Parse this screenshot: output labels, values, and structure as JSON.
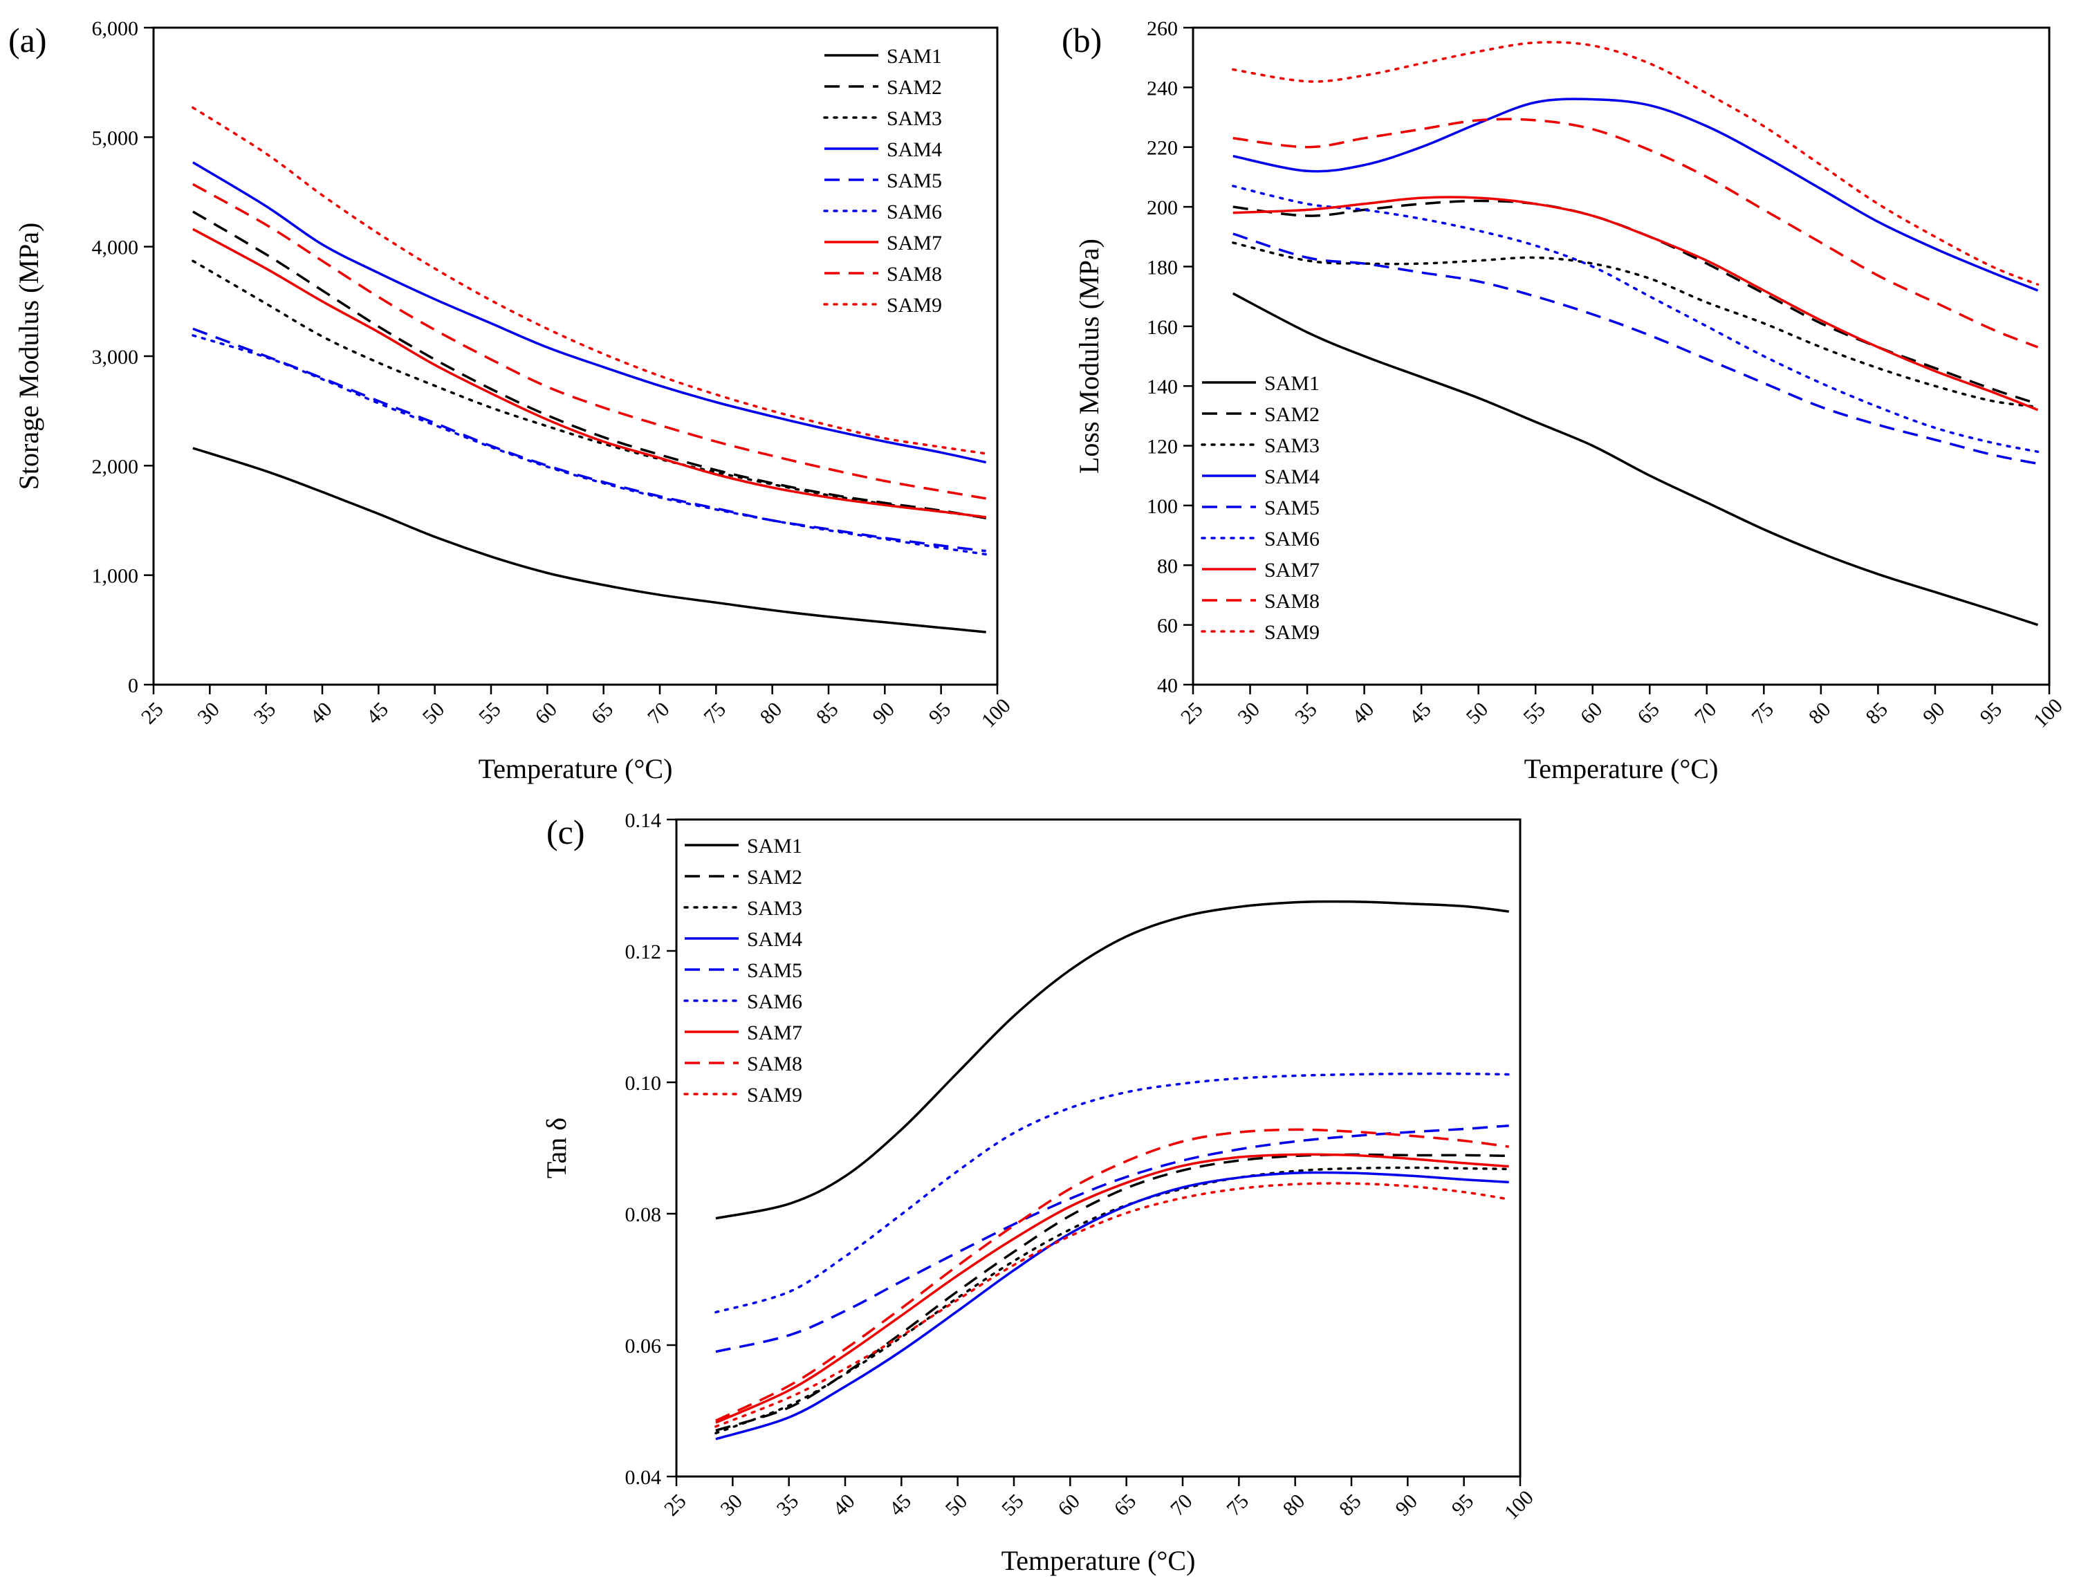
{
  "chart_data": [
    {
      "panel_label": "(a)",
      "type": "line",
      "xlabel": "Temperature (°C)",
      "ylabel": "Storage Modulus (MPa)",
      "xlim": [
        25,
        100
      ],
      "ylim": [
        0,
        6000
      ],
      "xticks": [
        25,
        30,
        35,
        40,
        45,
        50,
        55,
        60,
        65,
        70,
        75,
        80,
        85,
        90,
        95,
        100
      ],
      "yticks": [
        0,
        1000,
        2000,
        3000,
        4000,
        5000,
        6000
      ],
      "ytick_labels": [
        "0",
        "1,000",
        "2,000",
        "3,000",
        "4,000",
        "5,000",
        "6,000"
      ],
      "legend_position": "top-right",
      "x": [
        28.5,
        35,
        40,
        45,
        50,
        55,
        60,
        65,
        70,
        75,
        80,
        85,
        90,
        95,
        99
      ],
      "series": [
        {
          "name": "SAM1",
          "color": "#000000",
          "dash": "solid",
          "values": [
            2160,
            1950,
            1760,
            1560,
            1350,
            1170,
            1020,
            910,
            820,
            750,
            680,
            620,
            570,
            520,
            480
          ]
        },
        {
          "name": "SAM2",
          "color": "#000000",
          "dash": "dashed",
          "values": [
            4320,
            3930,
            3600,
            3270,
            2970,
            2700,
            2460,
            2260,
            2100,
            1960,
            1840,
            1740,
            1660,
            1590,
            1520
          ]
        },
        {
          "name": "SAM3",
          "color": "#000000",
          "dash": "dotted",
          "values": [
            3870,
            3480,
            3180,
            2940,
            2730,
            2530,
            2360,
            2200,
            2060,
            1940,
            1830,
            1730,
            1650,
            1580,
            1530
          ]
        },
        {
          "name": "SAM4",
          "color": "#0000ee",
          "dash": "solid",
          "values": [
            4770,
            4370,
            4020,
            3760,
            3520,
            3300,
            3080,
            2900,
            2730,
            2580,
            2450,
            2330,
            2220,
            2120,
            2030
          ]
        },
        {
          "name": "SAM5",
          "color": "#0000ee",
          "dash": "dashed",
          "values": [
            3250,
            3000,
            2800,
            2590,
            2390,
            2180,
            2000,
            1850,
            1720,
            1610,
            1500,
            1420,
            1340,
            1270,
            1220
          ]
        },
        {
          "name": "SAM6",
          "color": "#0000ee",
          "dash": "dotted",
          "values": [
            3190,
            2990,
            2790,
            2570,
            2370,
            2170,
            1990,
            1840,
            1710,
            1600,
            1500,
            1410,
            1330,
            1250,
            1190
          ]
        },
        {
          "name": "SAM7",
          "color": "#ee0000",
          "dash": "solid",
          "values": [
            4160,
            3800,
            3500,
            3220,
            2920,
            2660,
            2420,
            2220,
            2070,
            1920,
            1800,
            1710,
            1640,
            1580,
            1530
          ]
        },
        {
          "name": "SAM8",
          "color": "#ee0000",
          "dash": "dashed",
          "values": [
            4570,
            4200,
            3870,
            3540,
            3240,
            2970,
            2720,
            2530,
            2370,
            2220,
            2090,
            1970,
            1860,
            1770,
            1700
          ]
        },
        {
          "name": "SAM9",
          "color": "#ee0000",
          "dash": "dotted",
          "values": [
            5270,
            4850,
            4470,
            4120,
            3800,
            3510,
            3250,
            3020,
            2820,
            2650,
            2500,
            2370,
            2250,
            2170,
            2110
          ]
        }
      ]
    },
    {
      "panel_label": "(b)",
      "type": "line",
      "xlabel": "Temperature (°C)",
      "ylabel": "Loss Modulus (MPa)",
      "xlim": [
        25,
        100
      ],
      "ylim": [
        40,
        260
      ],
      "xticks": [
        25,
        30,
        35,
        40,
        45,
        50,
        55,
        60,
        65,
        70,
        75,
        80,
        85,
        90,
        95,
        100
      ],
      "yticks": [
        40,
        60,
        80,
        100,
        120,
        140,
        160,
        180,
        200,
        220,
        240,
        260
      ],
      "ytick_labels": [
        "40",
        "60",
        "80",
        "100",
        "120",
        "140",
        "160",
        "180",
        "200",
        "220",
        "240",
        "260"
      ],
      "legend_position": "bottom-left",
      "x": [
        28.5,
        35,
        40,
        45,
        50,
        55,
        60,
        65,
        70,
        75,
        80,
        85,
        90,
        95,
        99
      ],
      "series": [
        {
          "name": "SAM1",
          "color": "#000000",
          "dash": "solid",
          "values": [
            171,
            158,
            150,
            143,
            136,
            128,
            120,
            110,
            101,
            92,
            84,
            77,
            71,
            65,
            60
          ]
        },
        {
          "name": "SAM2",
          "color": "#000000",
          "dash": "dashed",
          "values": [
            200,
            197,
            199,
            201,
            202,
            201,
            197,
            190,
            181,
            171,
            161,
            153,
            146,
            139,
            134
          ]
        },
        {
          "name": "SAM3",
          "color": "#000000",
          "dash": "dotted",
          "values": [
            188,
            182,
            181,
            181,
            182,
            183,
            181,
            176,
            168,
            161,
            153,
            146,
            140,
            135,
            133
          ]
        },
        {
          "name": "SAM4",
          "color": "#0000ee",
          "dash": "solid",
          "values": [
            217,
            212,
            214,
            220,
            228,
            235,
            236,
            234,
            227,
            217,
            206,
            195,
            186,
            178,
            172
          ]
        },
        {
          "name": "SAM5",
          "color": "#0000ee",
          "dash": "dashed",
          "values": [
            191,
            183,
            181,
            178,
            175,
            170,
            164,
            157,
            149,
            141,
            133,
            127,
            122,
            117,
            114
          ]
        },
        {
          "name": "SAM6",
          "color": "#0000ee",
          "dash": "dotted",
          "values": [
            207,
            201,
            199,
            196,
            192,
            187,
            180,
            170,
            160,
            150,
            141,
            133,
            126,
            121,
            118
          ]
        },
        {
          "name": "SAM7",
          "color": "#ee0000",
          "dash": "solid",
          "values": [
            198,
            199,
            201,
            203,
            203,
            201,
            197,
            190,
            182,
            172,
            162,
            153,
            145,
            138,
            132
          ]
        },
        {
          "name": "SAM8",
          "color": "#ee0000",
          "dash": "dashed",
          "values": [
            223,
            220,
            223,
            226,
            229,
            229,
            226,
            219,
            210,
            199,
            188,
            177,
            168,
            159,
            153
          ]
        },
        {
          "name": "SAM9",
          "color": "#ee0000",
          "dash": "dotted",
          "values": [
            246,
            242,
            244,
            248,
            252,
            255,
            254,
            248,
            238,
            227,
            214,
            201,
            190,
            180,
            174
          ]
        }
      ]
    },
    {
      "panel_label": "(c)",
      "type": "line",
      "xlabel": "Temperature (°C)",
      "ylabel": "Tan δ",
      "xlim": [
        25,
        100
      ],
      "ylim": [
        0.04,
        0.14
      ],
      "xticks": [
        25,
        30,
        35,
        40,
        45,
        50,
        55,
        60,
        65,
        70,
        75,
        80,
        85,
        90,
        95,
        100
      ],
      "yticks": [
        0.04,
        0.06,
        0.08,
        0.1,
        0.12,
        0.14
      ],
      "ytick_labels": [
        "0.04",
        "0.06",
        "0.08",
        "0.10",
        "0.12",
        "0.14"
      ],
      "legend_position": "top-left",
      "x": [
        28.5,
        35,
        40,
        45,
        50,
        55,
        60,
        65,
        70,
        75,
        80,
        85,
        90,
        95,
        99
      ],
      "series": [
        {
          "name": "SAM1",
          "color": "#000000",
          "dash": "solid",
          "values": [
            0.0793,
            0.0815,
            0.0857,
            0.0928,
            0.1015,
            0.1101,
            0.1171,
            0.1222,
            0.1252,
            0.1267,
            0.1274,
            0.1275,
            0.1272,
            0.1268,
            0.126
          ]
        },
        {
          "name": "SAM2",
          "color": "#000000",
          "dash": "dashed",
          "values": [
            0.047,
            0.0505,
            0.0557,
            0.0618,
            0.0682,
            0.0742,
            0.0797,
            0.0839,
            0.0866,
            0.0881,
            0.0888,
            0.089,
            0.0889,
            0.0889,
            0.0888
          ]
        },
        {
          "name": "SAM3",
          "color": "#000000",
          "dash": "dotted",
          "values": [
            0.0466,
            0.0508,
            0.0556,
            0.0612,
            0.0672,
            0.0728,
            0.0776,
            0.0813,
            0.0838,
            0.0855,
            0.0865,
            0.0869,
            0.087,
            0.0869,
            0.0868
          ]
        },
        {
          "name": "SAM4",
          "color": "#0000ee",
          "dash": "solid",
          "values": [
            0.0457,
            0.049,
            0.0537,
            0.0591,
            0.0652,
            0.0714,
            0.077,
            0.0812,
            0.084,
            0.0855,
            0.0862,
            0.0862,
            0.0858,
            0.0852,
            0.0848
          ]
        },
        {
          "name": "SAM5",
          "color": "#0000ee",
          "dash": "dashed",
          "values": [
            0.059,
            0.0615,
            0.0652,
            0.0697,
            0.0741,
            0.0784,
            0.0823,
            0.0856,
            0.0881,
            0.0898,
            0.091,
            0.0918,
            0.0924,
            0.0929,
            0.0934
          ]
        },
        {
          "name": "SAM6",
          "color": "#0000ee",
          "dash": "dotted",
          "values": [
            0.065,
            0.0681,
            0.0735,
            0.0799,
            0.0865,
            0.0923,
            0.0961,
            0.0985,
            0.0998,
            0.1006,
            0.101,
            0.1012,
            0.1013,
            0.1013,
            0.1012
          ]
        },
        {
          "name": "SAM7",
          "color": "#ee0000",
          "dash": "solid",
          "values": [
            0.0482,
            0.0531,
            0.0585,
            0.0645,
            0.0706,
            0.0762,
            0.0811,
            0.0847,
            0.0873,
            0.0886,
            0.089,
            0.0889,
            0.0884,
            0.0877,
            0.0872
          ]
        },
        {
          "name": "SAM8",
          "color": "#ee0000",
          "dash": "dashed",
          "values": [
            0.0485,
            0.0538,
            0.0594,
            0.0656,
            0.0721,
            0.0782,
            0.0838,
            0.088,
            0.091,
            0.0924,
            0.0928,
            0.0925,
            0.0919,
            0.0911,
            0.0902
          ]
        },
        {
          "name": "SAM9",
          "color": "#ee0000",
          "dash": "dotted",
          "values": [
            0.0476,
            0.052,
            0.0564,
            0.0614,
            0.0669,
            0.0722,
            0.0766,
            0.0801,
            0.0824,
            0.0838,
            0.0845,
            0.0846,
            0.0842,
            0.0833,
            0.0822
          ]
        }
      ]
    }
  ]
}
